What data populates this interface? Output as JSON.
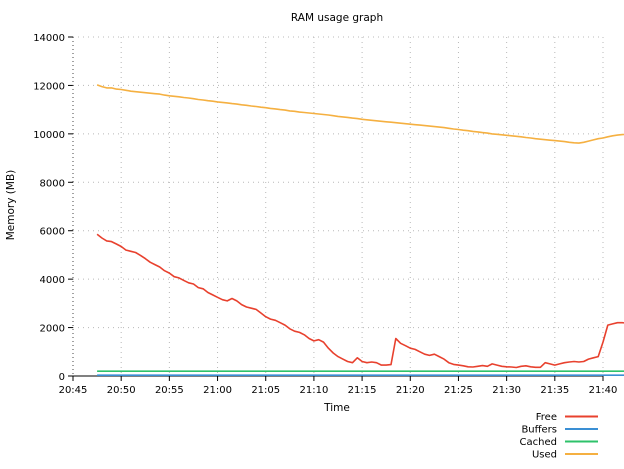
{
  "chart_data": {
    "type": "line",
    "title": "RAM usage graph",
    "xlabel": "Time",
    "ylabel": "Memory (MB)",
    "x_start": "20:47:30",
    "x_step_seconds": 30,
    "x_ticks": [
      "20:45",
      "20:50",
      "20:55",
      "21:00",
      "21:05",
      "21:10",
      "21:15",
      "21:20",
      "21:25",
      "21:30",
      "21:35",
      "21:40"
    ],
    "y_ticks": [
      0,
      2000,
      4000,
      6000,
      8000,
      10000,
      12000,
      14000
    ],
    "xlim": [
      "20:45",
      "21:40"
    ],
    "ylim": [
      0,
      14000
    ],
    "grid": true,
    "legend_position": "bottom-right",
    "series": [
      {
        "name": "Free",
        "color": "#e8412e",
        "values": [
          5850,
          5700,
          5580,
          5550,
          5450,
          5350,
          5200,
          5150,
          5100,
          4980,
          4850,
          4700,
          4600,
          4500,
          4350,
          4250,
          4100,
          4050,
          3950,
          3850,
          3800,
          3650,
          3600,
          3450,
          3350,
          3250,
          3150,
          3100,
          3200,
          3100,
          2950,
          2850,
          2800,
          2750,
          2600,
          2450,
          2350,
          2300,
          2200,
          2100,
          1950,
          1850,
          1800,
          1700,
          1550,
          1450,
          1500,
          1400,
          1150,
          950,
          800,
          700,
          600,
          550,
          750,
          600,
          550,
          580,
          550,
          450,
          450,
          470,
          1550,
          1350,
          1250,
          1150,
          1100,
          1000,
          900,
          850,
          900,
          800,
          700,
          550,
          480,
          450,
          420,
          380,
          370,
          400,
          430,
          400,
          500,
          450,
          400,
          380,
          370,
          350,
          400,
          420,
          380,
          360,
          360,
          550,
          500,
          450,
          500,
          550,
          580,
          600,
          580,
          600,
          700,
          750,
          800,
          1400,
          2100,
          2150,
          2200,
          2200,
          2180,
          2200,
          2150,
          2200,
          2200,
          2180,
          2200,
          2150,
          2200,
          2200,
          2200,
          2150,
          2180,
          2200
        ]
      },
      {
        "name": "Buffers",
        "color": "#3a8fd4",
        "values": [
          35,
          35,
          35,
          35,
          35,
          35,
          35,
          35,
          35,
          35,
          35,
          35,
          35,
          35,
          35,
          35,
          35,
          35,
          35,
          35,
          35,
          35,
          35,
          35,
          35,
          35,
          35,
          35,
          35,
          35,
          35,
          35,
          35,
          35,
          35,
          35,
          35,
          35,
          35,
          35,
          35,
          35,
          35,
          35,
          35,
          35,
          35,
          35,
          35,
          35,
          35,
          35,
          35,
          35,
          35,
          35,
          35,
          35,
          35,
          35,
          35,
          35,
          35,
          35,
          35,
          35,
          35,
          35,
          35,
          35,
          35,
          35,
          35,
          35,
          35,
          35,
          35,
          35,
          35,
          35,
          35,
          35,
          35,
          35,
          35,
          35,
          35,
          35,
          35,
          35,
          35,
          35,
          35,
          35,
          35,
          35,
          35,
          35,
          35,
          35,
          35,
          35,
          35,
          35,
          35,
          35,
          35,
          35,
          35,
          35,
          35,
          35,
          35,
          35,
          35,
          35,
          35,
          35,
          35,
          35,
          35,
          35,
          35,
          35
        ]
      },
      {
        "name": "Cached",
        "color": "#2ec26a",
        "values": [
          200,
          200,
          200,
          200,
          200,
          200,
          200,
          200,
          200,
          200,
          200,
          200,
          200,
          200,
          200,
          200,
          200,
          200,
          200,
          200,
          200,
          200,
          200,
          200,
          200,
          200,
          200,
          200,
          200,
          200,
          200,
          200,
          200,
          200,
          200,
          200,
          200,
          200,
          200,
          200,
          200,
          200,
          200,
          200,
          200,
          200,
          200,
          200,
          200,
          200,
          200,
          200,
          200,
          200,
          200,
          200,
          200,
          200,
          200,
          200,
          200,
          200,
          200,
          200,
          200,
          200,
          200,
          200,
          200,
          200,
          200,
          200,
          200,
          200,
          200,
          200,
          200,
          200,
          200,
          200,
          200,
          200,
          200,
          200,
          200,
          200,
          200,
          200,
          200,
          200,
          200,
          200,
          200,
          200,
          200,
          200,
          200,
          200,
          200,
          200,
          200,
          200,
          200,
          200,
          200,
          200,
          200,
          200,
          200,
          200,
          200,
          200,
          200,
          200,
          200,
          200,
          200,
          200,
          200,
          200,
          200,
          200,
          200,
          200
        ]
      },
      {
        "name": "Used",
        "color": "#f5b041",
        "values": [
          12020,
          11950,
          11900,
          11900,
          11850,
          11830,
          11800,
          11760,
          11740,
          11720,
          11700,
          11680,
          11660,
          11640,
          11600,
          11570,
          11550,
          11530,
          11500,
          11480,
          11450,
          11420,
          11400,
          11370,
          11350,
          11320,
          11300,
          11280,
          11250,
          11230,
          11200,
          11180,
          11150,
          11130,
          11100,
          11080,
          11050,
          11030,
          11000,
          10980,
          10950,
          10930,
          10900,
          10880,
          10860,
          10840,
          10820,
          10800,
          10780,
          10750,
          10720,
          10700,
          10680,
          10650,
          10630,
          10600,
          10580,
          10560,
          10540,
          10520,
          10500,
          10480,
          10460,
          10440,
          10420,
          10400,
          10380,
          10360,
          10340,
          10320,
          10300,
          10280,
          10260,
          10230,
          10200,
          10180,
          10150,
          10130,
          10100,
          10080,
          10050,
          10030,
          10000,
          9980,
          9960,
          9940,
          9920,
          9900,
          9880,
          9850,
          9830,
          9800,
          9780,
          9760,
          9740,
          9720,
          9700,
          9680,
          9650,
          9630,
          9620,
          9650,
          9700,
          9750,
          9800,
          9830,
          9880,
          9920,
          9950,
          9970,
          9980,
          9960,
          9950,
          9970,
          9960,
          9950,
          9960,
          9970,
          9950,
          9980,
          9970,
          9960,
          9950,
          9960
        ]
      }
    ]
  }
}
